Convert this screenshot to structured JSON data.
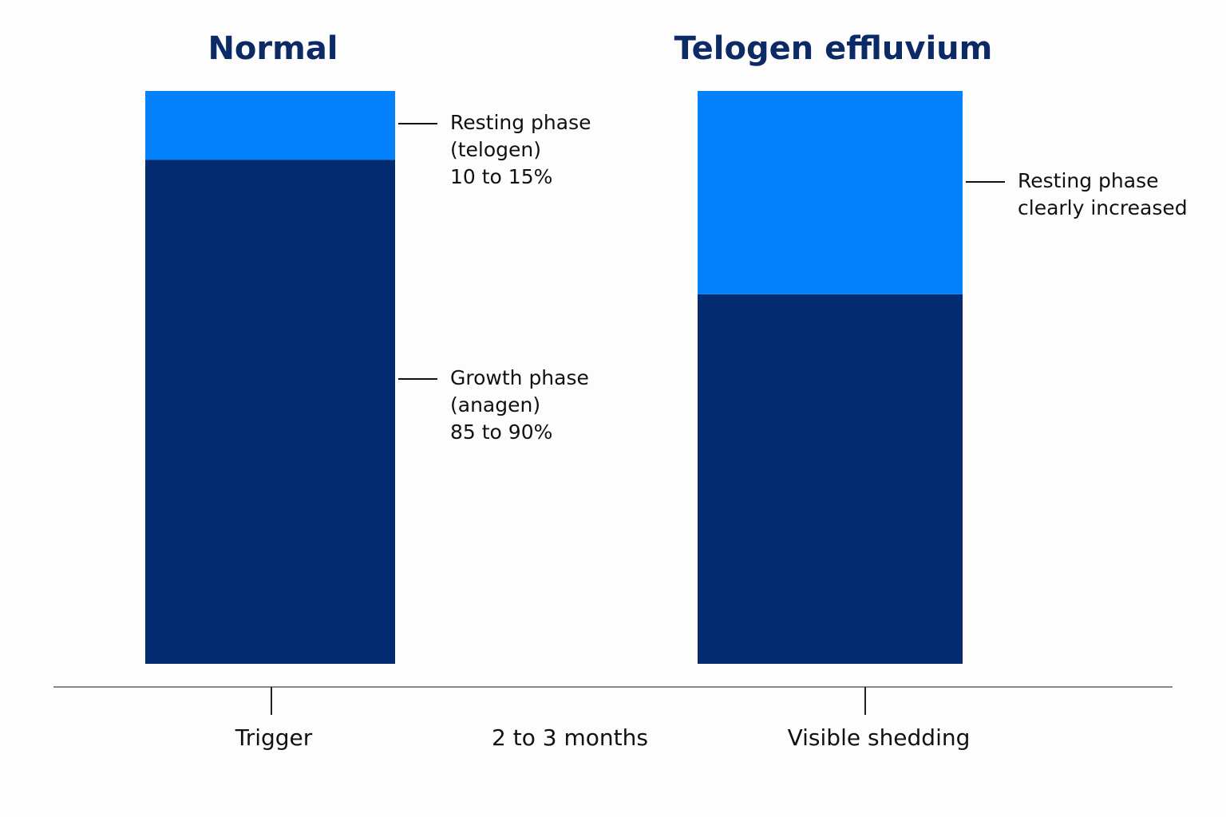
{
  "chart_data": {
    "type": "bar",
    "stacked": true,
    "categories": [
      "Normal",
      "Telogen effluvium"
    ],
    "series": [
      {
        "name": "Growth phase",
        "color": "#022c6f",
        "values": [
          88,
          64.5
        ]
      },
      {
        "name": "Resting phase",
        "color": "#0482fc",
        "values": [
          12,
          35.5
        ]
      }
    ],
    "ylim": [
      0,
      100
    ],
    "annotations": [
      {
        "id": "normal-resting",
        "bar": 0,
        "segment": 1,
        "lines": [
          "Resting phase",
          "(telogen)",
          "10 to 15%"
        ]
      },
      {
        "id": "normal-growth",
        "bar": 0,
        "segment": 0,
        "lines": [
          "Growth phase",
          "(anagen)",
          "85 to 90%"
        ]
      },
      {
        "id": "te-resting",
        "bar": 1,
        "segment": 1,
        "lines": [
          "Resting phase",
          "clearly increased"
        ]
      }
    ],
    "timeline": {
      "labels": [
        "Trigger",
        "2 to 3 months",
        "Visible shedding"
      ],
      "tick_marks": [
        true,
        false,
        true
      ],
      "axis_color": "#888888"
    }
  }
}
